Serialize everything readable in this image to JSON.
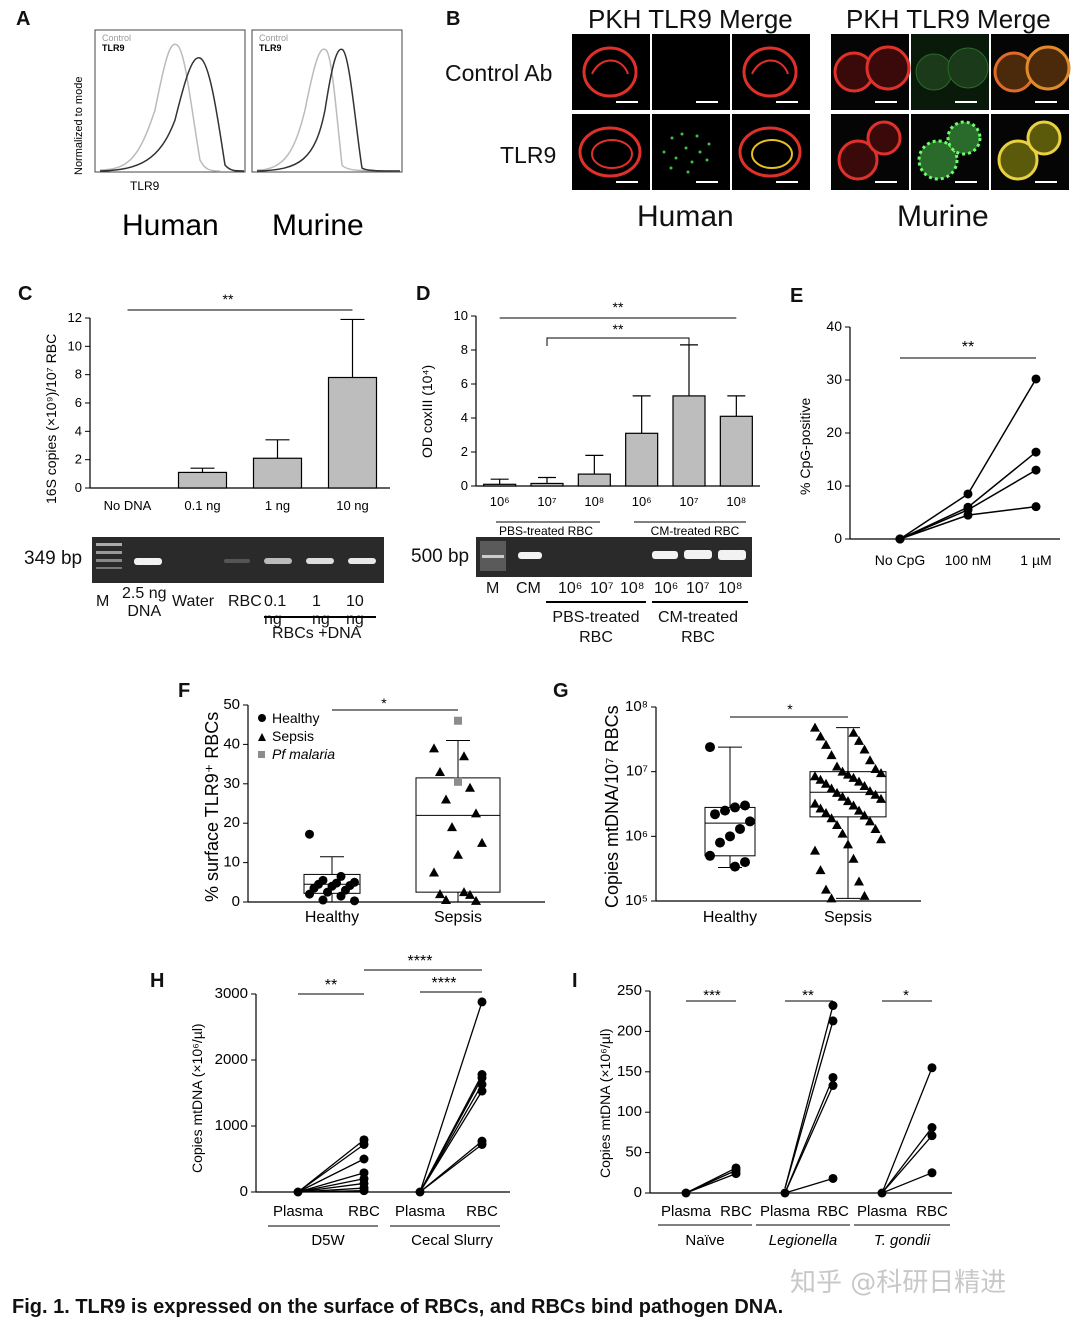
{
  "colors": {
    "bar": "#bdbdbd",
    "gel": "#2a2a2a",
    "band": "#f2f2f2",
    "red": "#e0302a",
    "green": "#3fbf3f",
    "pf": "#8c8c8c"
  },
  "panelA": {
    "label": "A",
    "ylabel": "Normalized to mode",
    "xlabel": "TLR9",
    "legend": [
      "Control",
      "TLR9"
    ],
    "species": [
      "Human",
      "Murine"
    ]
  },
  "panelB": {
    "label": "B",
    "cols": [
      "PKH",
      "TLR9",
      "Merge"
    ],
    "rows": [
      "Control Ab",
      "TLR9"
    ],
    "species": [
      "Human",
      "Murine"
    ]
  },
  "panelC": {
    "label": "C",
    "ylabel": "16S copies (×10⁹)/10⁷ RBC",
    "sig": "**",
    "gel_bp": "349 bp",
    "gel_lanes": [
      "M",
      "2.5 ng\nDNA",
      "Water",
      "RBC",
      "0.1 ng",
      "1 ng",
      "10 ng"
    ],
    "gel_group": "RBCs +DNA"
  },
  "panelD": {
    "label": "D",
    "ylabel": "OD coxIII (10⁴)",
    "sig1": "**",
    "sig2": "**",
    "group1": "PBS-treated RBC",
    "group2": "CM-treated RBC",
    "gel_bp": "500 bp",
    "gel_lanes": [
      "M",
      "CM",
      "10⁶",
      "10⁷",
      "10⁸",
      "10⁶",
      "10⁷",
      "10⁸"
    ],
    "gel_group1": "PBS-treated\nRBC",
    "gel_group2": "CM-treated\nRBC"
  },
  "panelE": {
    "label": "E",
    "ylabel": "% CpG-positive",
    "sig": "**"
  },
  "panelF": {
    "label": "F",
    "ylabel": "% surface TLR9⁺ RBCs",
    "sig": "*",
    "legend": [
      "Healthy",
      "Sepsis",
      "Pf malaria"
    ]
  },
  "panelG": {
    "label": "G",
    "ylabel": "Copies mtDNA/10⁷ RBCs",
    "sig": "*"
  },
  "panelH": {
    "label": "H",
    "ylabel": "Copies mtDNA (×10⁶/µl)",
    "sig1": "**",
    "sig2": "****",
    "sig3": "****",
    "groups": [
      "D5W",
      "Cecal Slurry"
    ]
  },
  "panelI": {
    "label": "I",
    "ylabel": "Copies mtDNA (×10⁶/µl)",
    "sigs": [
      "***",
      "**",
      "*"
    ],
    "groups": [
      "Naïve",
      "Legionella",
      "T. gondii"
    ]
  },
  "caption": "Fig. 1. TLR9 is expressed on the surface of RBCs, and RBCs bind pathogen DNA.",
  "watermark": "知乎 @科研日精进",
  "chart_data": [
    {
      "id": "C",
      "type": "bar",
      "categories": [
        "No DNA",
        "0.1 ng",
        "1 ng",
        "10 ng"
      ],
      "values": [
        0,
        1.1,
        2.1,
        7.8
      ],
      "errors": [
        0,
        0.3,
        1.3,
        4.1
      ],
      "ylim": [
        0,
        12
      ],
      "yticks": [
        0,
        2,
        4,
        6,
        8,
        10,
        12
      ]
    },
    {
      "id": "D",
      "type": "bar",
      "categories": [
        "10⁶",
        "10⁷",
        "10⁸",
        "10⁶",
        "10⁷",
        "10⁸"
      ],
      "values": [
        0.1,
        0.15,
        0.7,
        3.1,
        5.3,
        4.1
      ],
      "errors": [
        0.3,
        0.35,
        1.1,
        2.2,
        3.0,
        1.2
      ],
      "ylim": [
        0,
        10
      ],
      "yticks": [
        0,
        2,
        4,
        6,
        8,
        10
      ]
    },
    {
      "id": "E",
      "type": "line",
      "categories": [
        "No CpG",
        "100 nM",
        "1 µM"
      ],
      "series": [
        {
          "values": [
            0,
            8.5,
            30.2
          ]
        },
        {
          "values": [
            0,
            6,
            16.4
          ]
        },
        {
          "values": [
            0,
            5.5,
            13
          ]
        },
        {
          "values": [
            0,
            4.5,
            6.1
          ]
        }
      ],
      "ylim": [
        0,
        40
      ],
      "yticks": [
        0,
        10,
        20,
        30,
        40
      ]
    },
    {
      "id": "F",
      "type": "scatter",
      "categories": [
        "Healthy",
        "Sepsis"
      ],
      "ylim": [
        0,
        50
      ],
      "yticks": [
        0,
        10,
        20,
        30,
        40,
        50
      ],
      "box": [
        {
          "q1": 2.2,
          "median": 4.5,
          "q3": 7,
          "whisker_low": 0,
          "whisker_high": 11.5
        },
        {
          "q1": 2.5,
          "median": 22,
          "q3": 31.5,
          "whisker_low": 0,
          "whisker_high": 41
        }
      ],
      "healthy": [
        17.2,
        6.5,
        5.5,
        5,
        4.8,
        4.5,
        4.2,
        4,
        3.5,
        3,
        2.5,
        2,
        1.5,
        0.5,
        0.3
      ],
      "sepsis": [
        39,
        37,
        33,
        29,
        26,
        22.5,
        19,
        15,
        12,
        7.5,
        2.5,
        2,
        1.8,
        0.5,
        0.3
      ],
      "pf_malaria": [
        46,
        30.5
      ]
    },
    {
      "id": "G",
      "type": "scatter",
      "scale": "log",
      "categories": [
        "Healthy",
        "Sepsis"
      ],
      "ylim": [
        100000,
        100000000
      ],
      "yticks": [
        100000,
        1000000,
        10000000,
        100000000
      ],
      "box": [
        {
          "q1": 500000,
          "median": 1600000,
          "q3": 2800000,
          "whisker_low": 330000,
          "whisker_high": 24000000
        },
        {
          "q1": 2000000,
          "median": 4800000,
          "q3": 10000000,
          "whisker_low": 110000,
          "whisker_high": 48000000
        }
      ],
      "healthy": [
        24000000,
        3000000,
        2800000,
        2500000,
        2200000,
        1700000,
        1300000,
        1000000,
        800000,
        500000,
        400000,
        340000
      ],
      "sepsis": [
        48000000,
        40000000,
        35000000,
        30000000,
        26000000,
        22000000,
        18000000,
        15000000,
        12000000,
        11000000,
        10000000,
        9500000,
        9000000,
        8500000,
        8000000,
        7500000,
        7000000,
        6500000,
        6000000,
        5500000,
        5000000,
        4700000,
        4400000,
        4100000,
        3800000,
        3500000,
        3200000,
        3000000,
        2700000,
        2500000,
        2300000,
        2100000,
        1900000,
        1700000,
        1500000,
        1300000,
        1100000,
        900000,
        750000,
        600000,
        450000,
        300000,
        200000,
        150000,
        120000,
        110000
      ]
    },
    {
      "id": "H",
      "type": "line",
      "categories": [
        "Plasma",
        "RBC",
        "Plasma",
        "RBC"
      ],
      "ylim": [
        0,
        3000
      ],
      "yticks": [
        0,
        1000,
        2000,
        3000
      ],
      "d5w_rbc": [
        790,
        720,
        500,
        290,
        200,
        130,
        60,
        20
      ],
      "cecal_rbc": [
        2880,
        1780,
        1730,
        1630,
        1530,
        770,
        720
      ]
    },
    {
      "id": "I",
      "type": "line",
      "categories": [
        "Plasma",
        "RBC",
        "Plasma",
        "RBC",
        "Plasma",
        "RBC"
      ],
      "ylim": [
        0,
        250
      ],
      "yticks": [
        0,
        50,
        100,
        150,
        200,
        250
      ],
      "naive_rbc": [
        31,
        28,
        24
      ],
      "legionella_rbc": [
        232,
        213,
        143,
        133,
        18
      ],
      "tgondii_rbc": [
        155,
        81,
        71,
        25
      ]
    }
  ]
}
